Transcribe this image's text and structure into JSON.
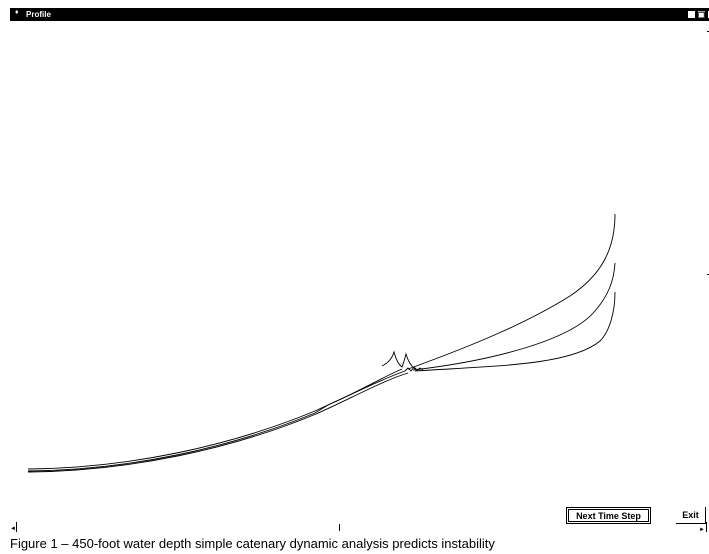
{
  "window": {
    "title": "Profile",
    "controls": {
      "minimize": "_",
      "restore": "❐",
      "close": ""
    }
  },
  "canvas": {
    "curve_count": 3,
    "line_color": "#000000",
    "background": "#ffffff"
  },
  "buttons": {
    "next_time_step": "Next Time Step",
    "exit": "Exit"
  },
  "scrollbar": {
    "left_arrow": "◄",
    "right_arrow": "►"
  },
  "caption": "Figure 1 – 450-foot water depth simple catenary dynamic analysis predicts instability"
}
